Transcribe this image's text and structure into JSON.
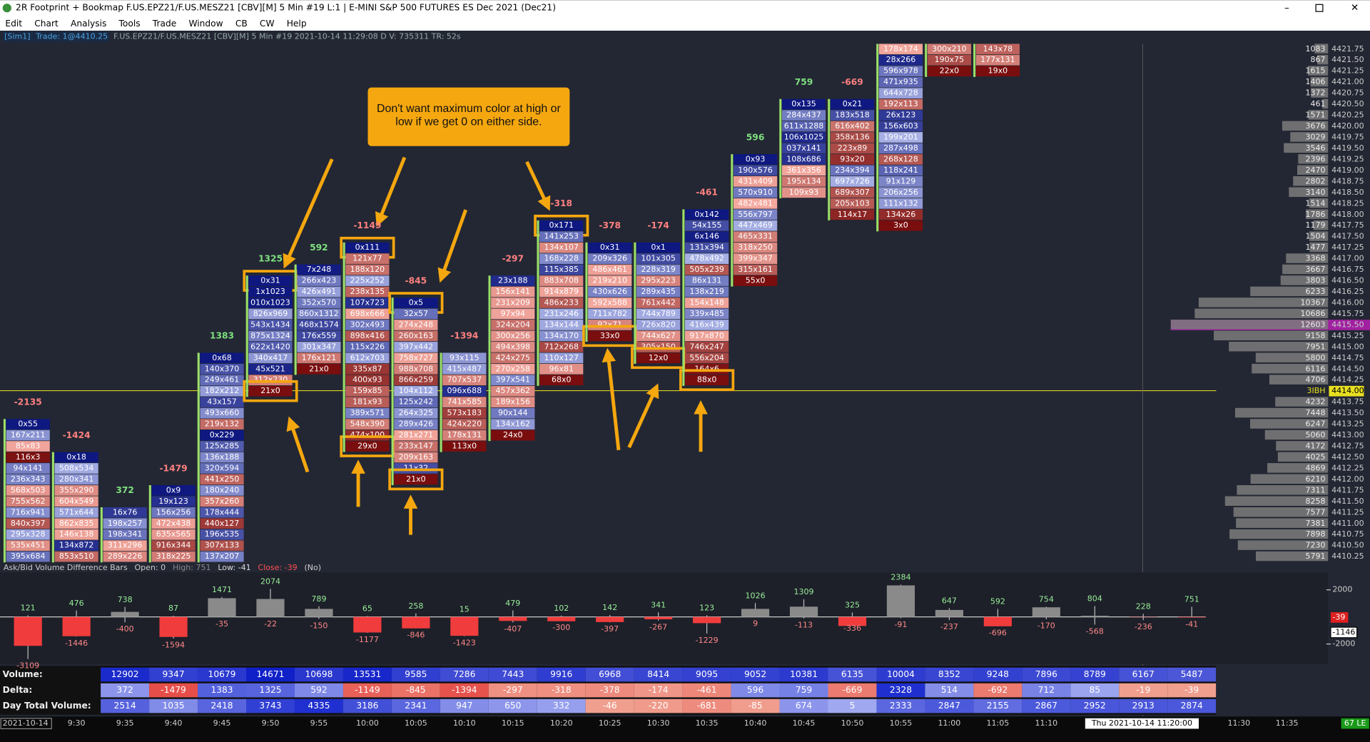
{
  "window": {
    "title": "2R Footprint + Bookmap F.US.EPZ21/F.US.MESZ21 [CBV][M]  5 Min  #19 L:1 | E-MINI S&P 500 FUTURES ES Dec 2021 (Dec21)",
    "menu": [
      "Edit",
      "Chart",
      "Analysis",
      "Tools",
      "Trade",
      "Window",
      "CB",
      "CW",
      "Help"
    ]
  },
  "info_bar": {
    "account": "[Sim1]",
    "trade": "Trade: 1@4410.25",
    "details": "F.US.EPZ21/F.US.MESZ21 [CBV][M] 5 Min #19 2021-10-14 11:29:08 D V: 735311 TR: 52s"
  },
  "annotation": "Don't want maximum color at high or low if we get 0 on either side.",
  "footprint": {
    "columns": [
      {
        "total": -2135,
        "top": "4413.25",
        "cells": [
          "0x55",
          "167x211",
          "85x83",
          "116x3",
          "94x141",
          "236x343",
          "568x503",
          "755x562",
          "716x941",
          "840x397",
          "295x328",
          "535x451",
          "395x684"
        ]
      },
      {
        "total": -1424,
        "top": "4412.50",
        "cells": [
          "0x18",
          "508x534",
          "280x341",
          "355x290",
          "604x549",
          "571x644",
          "862x835",
          "146x138",
          "134x872",
          "853x510"
        ]
      },
      {
        "total": 372,
        "top": "4411.25",
        "cells": [
          "16x76",
          "198x257",
          "198x341",
          "311x296",
          "289x226"
        ]
      },
      {
        "total": -1479,
        "top": "4411.75",
        "cells": [
          "0x9",
          "19x123",
          "156x256",
          "472x438",
          "635x565",
          "916x344",
          "318x225"
        ]
      },
      {
        "total": 1383,
        "top": "4414.75",
        "cells": [
          "0x68",
          "140x370",
          "249x461",
          "182x212",
          "43x157",
          "493x660",
          "219x132",
          "0x229",
          "125x285",
          "136x188",
          "320x594",
          "441x250",
          "180x240",
          "357x260",
          "178x444",
          "440x127",
          "196x535",
          "307x133",
          "137x207"
        ]
      },
      {
        "total": 1325,
        "top": "4416.50",
        "cells": [
          "0x31",
          "1x1023",
          "010x1023",
          "826x969",
          "543x1434",
          "875x1324",
          "622x1420",
          "340x417",
          "45x521",
          "312x230",
          "21x0"
        ]
      },
      {
        "total": 592,
        "top": "4416.75",
        "cells": [
          "7x248",
          "266x423",
          "426x491",
          "352x570",
          "860x1312",
          "468x1574",
          "176x559",
          "301x347",
          "176x121",
          "21x0"
        ]
      },
      {
        "total": -1149,
        "top": "4417.25",
        "cells": [
          "0x111",
          "121x77",
          "188x120",
          "225x252",
          "238x135",
          "107x723",
          "698x666",
          "302x493",
          "898x416",
          "115x226",
          "612x703",
          "335x87",
          "400x93",
          "159x85",
          "181x93",
          "389x571",
          "548x390",
          "474x100",
          "29x0"
        ]
      },
      {
        "total": -845,
        "top": "4416.00",
        "cells": [
          "0x5",
          "32x57",
          "274x248",
          "260x163",
          "397x442",
          "758x727",
          "988x708",
          "866x259",
          "104x112",
          "125x242",
          "264x325",
          "289x426",
          "281x271",
          "233x147",
          "209x163",
          "11x32",
          "21x0"
        ]
      },
      {
        "total": -1394,
        "top": "4414.75",
        "cells": [
          "93x115",
          "415x487",
          "707x537",
          "096x688",
          "741x585",
          "573x183",
          "424x220",
          "178x131",
          "113x0"
        ]
      },
      {
        "total": -297,
        "top": "4416.50",
        "cells": [
          "23x188",
          "156x141",
          "231x209",
          "97x94",
          "324x204",
          "300x256",
          "494x398",
          "424x275",
          "270x258",
          "397x541",
          "457x362",
          "189x156",
          "90x144",
          "134x162",
          "24x0"
        ]
      },
      {
        "total": -318,
        "top": "4417.75",
        "cells": [
          "0x171",
          "141x253",
          "134x107",
          "168x228",
          "115x385",
          "883x708",
          "914x879",
          "486x233",
          "231x246",
          "134x144",
          "134x170",
          "712x268",
          "110x127",
          "96x81",
          "68x0"
        ]
      },
      {
        "total": -378,
        "top": "4417.25",
        "cells": [
          "0x31",
          "209x326",
          "486x461",
          "219x210",
          "430x626",
          "592x588",
          "711x782",
          "92x71",
          "33x0"
        ]
      },
      {
        "total": -174,
        "top": "4417.25",
        "cells": [
          "0x1",
          "101x305",
          "228x319",
          "295x223",
          "289x435",
          "761x442",
          "744x789",
          "726x820",
          "744x627",
          "305x150",
          "12x0"
        ]
      },
      {
        "total": -461,
        "top": "4418.00",
        "cells": [
          "0x142",
          "54x155",
          "6x146",
          "131x394",
          "478x492",
          "505x239",
          "86x131",
          "138x219",
          "154x148",
          "339x485",
          "416x439",
          "917x870",
          "746x247",
          "556x204",
          "164x6",
          "88x0"
        ]
      },
      {
        "total": 596,
        "top": "4419.25",
        "cells": [
          "0x93",
          "190x576",
          "431x409",
          "570x910",
          "482x481",
          "556x797",
          "447x469",
          "465x331",
          "318x250",
          "399x347",
          "315x161",
          "55x0"
        ]
      },
      {
        "total": 759,
        "top": "4420.50",
        "cells": [
          "0x135",
          "284x437",
          "611x1288",
          "106x1025",
          "037x141",
          "108x686",
          "361x356",
          "195x134",
          "109x93"
        ]
      },
      {
        "total": -669,
        "top": "4420.50",
        "cells": [
          "0x21",
          "183x518",
          "616x402",
          "358x136",
          "223x89",
          "93x20",
          "234x394",
          "697x726",
          "689x307",
          "205x103",
          "114x17"
        ]
      },
      {
        "total": null,
        "top": "4421.75",
        "cells": [
          "178x174",
          "28x266",
          "596x978",
          "471x935",
          "644x728",
          "192x113",
          "26x123",
          "156x603",
          "199x201",
          "287x498",
          "268x128",
          "118x241",
          "91x129",
          "206x256",
          "111x132",
          "134x26",
          "3x0"
        ]
      },
      {
        "total": null,
        "top": "4421.75",
        "cells": [
          "300x210",
          "190x75",
          "22x0"
        ]
      },
      {
        "total": null,
        "top": "4421.75",
        "cells": [
          "143x78",
          "177x131",
          "19x0"
        ]
      }
    ]
  },
  "profile": {
    "prices": [
      "4421.75",
      "4421.50",
      "4421.25",
      "4421.00",
      "4420.75",
      "4420.50",
      "4420.25",
      "4420.00",
      "4419.75",
      "4419.50",
      "4419.25",
      "4419.00",
      "4418.75",
      "4418.50",
      "4418.25",
      "4418.00",
      "4417.75",
      "4417.50",
      "4417.25",
      "4417.00",
      "4416.75",
      "4416.50",
      "4416.25",
      "4416.00",
      "4415.75",
      "4415.50",
      "4415.25",
      "4415.00",
      "4414.75",
      "4414.50",
      "4414.25",
      "4414.00",
      "4413.75",
      "4413.50",
      "4413.25",
      "4413.00",
      "4412.75",
      "4412.50",
      "4412.25",
      "4412.00",
      "4411.75",
      "4411.50",
      "4411.25",
      "4411.00",
      "4410.75",
      "4410.50",
      "4410.25"
    ],
    "volumes": [
      1083,
      867,
      1615,
      1406,
      1372,
      461,
      1571,
      3676,
      3029,
      3546,
      2396,
      2470,
      2802,
      3140,
      1514,
      1786,
      1179,
      1504,
      1477,
      3368,
      3667,
      3803,
      6233,
      10367,
      10686,
      12603,
      9158,
      7951,
      5800,
      6116,
      4706,
      null,
      4232,
      7448,
      6247,
      5060,
      4172,
      4025,
      4869,
      6210,
      7311,
      8258,
      7577,
      7381,
      7898,
      7230,
      5791
    ],
    "ibh_label": "3IBH"
  },
  "delta_pane": {
    "caption": "Ask/Bid Volume Difference Bars",
    "stats": [
      "Open: 0",
      "High: 751",
      "Low: -41",
      "Close: -39",
      "(No)"
    ],
    "highs": [
      121,
      476,
      738,
      87,
      1471,
      2074,
      789,
      65,
      258,
      15,
      479,
      102,
      142,
      341,
      123,
      1026,
      1309,
      325,
      2384,
      647,
      592,
      754,
      804,
      228,
      751
    ],
    "lows": [
      -3109,
      -1446,
      -400,
      -1594,
      -35,
      -22,
      -150,
      -1177,
      -846,
      -1423,
      -407,
      -300,
      -397,
      -267,
      -1229,
      9,
      -113,
      -336,
      -91,
      -237,
      -696,
      -170,
      -568,
      -236,
      -41
    ],
    "yticks": [
      2000,
      -2000
    ],
    "last": -39,
    "cursor": -1146
  },
  "table": {
    "labels": [
      "Volume:",
      "Delta:",
      "Day Total Volume:"
    ],
    "volume": [
      12902,
      9347,
      10679,
      14671,
      10698,
      13531,
      9585,
      7286,
      7443,
      9916,
      6968,
      8414,
      9095,
      9052,
      10381,
      6135,
      10004,
      8352,
      9248,
      7896,
      8789,
      6167,
      5487
    ],
    "delta": [
      372,
      -1479,
      1383,
      1325,
      592,
      -1149,
      -845,
      -1394,
      -297,
      -318,
      -378,
      -174,
      -461,
      596,
      759,
      -669,
      2328,
      514,
      -692,
      712,
      85,
      -19,
      -39
    ],
    "day_total": [
      2514,
      1035,
      2418,
      3743,
      4335,
      3186,
      2341,
      947,
      650,
      332,
      -46,
      -220,
      -681,
      -85,
      674,
      5,
      2333,
      2847,
      2155,
      2867,
      2952,
      2913,
      2874
    ]
  },
  "time_axis": {
    "date": "2021-10-14",
    "labels": [
      "9:30",
      "9:35",
      "9:40",
      "9:45",
      "9:50",
      "9:55",
      "10:00",
      "10:05",
      "10:10",
      "10:15",
      "10:20",
      "10:25",
      "10:30",
      "10:35",
      "10:40",
      "10:45",
      "10:50",
      "10:55",
      "11:00",
      "11:05",
      "11:10"
    ],
    "cursor": "Thu 2021-10-14 11:20:00",
    "right_labels": [
      "11:30",
      "11:35"
    ],
    "status": "67 LE"
  }
}
